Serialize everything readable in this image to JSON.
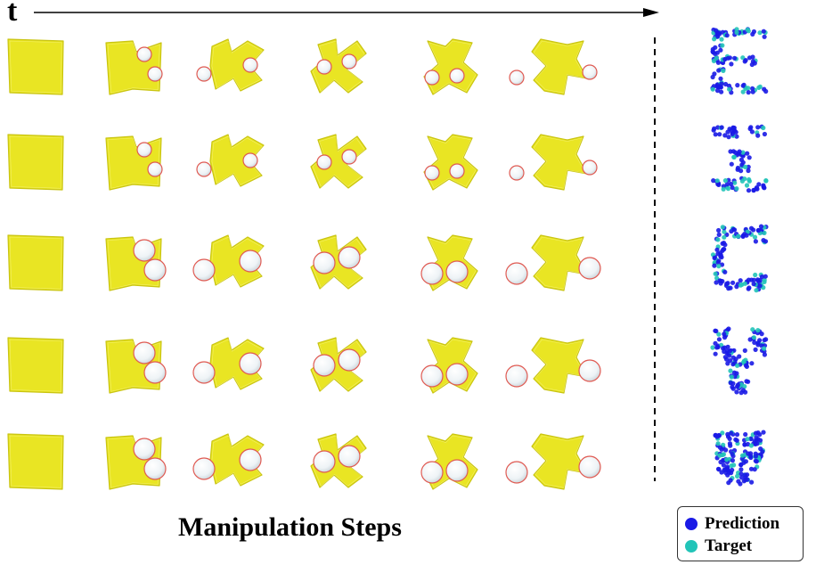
{
  "time_axis_label": "t",
  "caption": "Manipulation Steps",
  "legend": {
    "items": [
      {
        "label": "Prediction",
        "color": "#1a1ae6"
      },
      {
        "label": "Target",
        "color": "#22c4b8"
      }
    ]
  },
  "colors": {
    "material": "#e9e523",
    "material_shadow": "#c9c412",
    "tool_fill": "#eef3f6",
    "tool_rim": "#e05a52",
    "prediction": "#1a1ae6",
    "target": "#22c4b8"
  },
  "rows": [
    {
      "target_shape": "E"
    },
    {
      "target_shape": "Z"
    },
    {
      "target_shape": "C"
    },
    {
      "target_shape": "Y"
    },
    {
      "target_shape": "heart"
    }
  ]
}
